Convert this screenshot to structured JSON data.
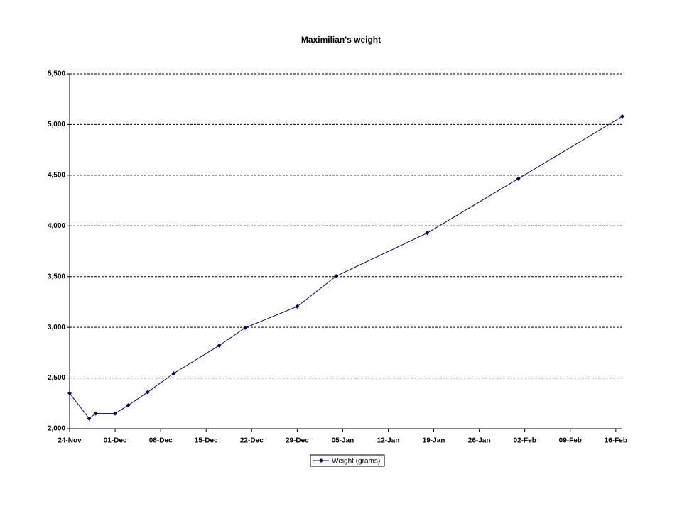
{
  "chart_data": {
    "type": "line",
    "title": "Maximilian's weight",
    "x": [
      "24-Nov",
      "27-Nov",
      "28-Nov",
      "01-Dec",
      "03-Dec",
      "06-Dec",
      "10-Dec",
      "17-Dec",
      "21-Dec",
      "29-Dec",
      "04-Jan",
      "18-Jan",
      "01-Feb",
      "17-Feb"
    ],
    "series": [
      {
        "name": "Weight (grams)",
        "color": "#000066",
        "values": [
          2350,
          2100,
          2150,
          2150,
          2230,
          2360,
          2545,
          2820,
          2995,
          3205,
          3505,
          3930,
          4465,
          5080
        ]
      }
    ],
    "xlim": [
      "24-Nov",
      "17-Feb"
    ],
    "xticks": [
      "24-Nov",
      "01-Dec",
      "08-Dec",
      "15-Dec",
      "22-Dec",
      "29-Dec",
      "05-Jan",
      "12-Jan",
      "19-Jan",
      "26-Jan",
      "02-Feb",
      "09-Feb",
      "16-Feb"
    ],
    "ylim": [
      2000,
      5500
    ],
    "yticks": [
      {
        "value": 2000,
        "label": "2,000"
      },
      {
        "value": 2500,
        "label": "2,500"
      },
      {
        "value": 3000,
        "label": "3,000"
      },
      {
        "value": 3500,
        "label": "3,500"
      },
      {
        "value": 4000,
        "label": "4,000"
      },
      {
        "value": 4500,
        "label": "4,500"
      },
      {
        "value": 5000,
        "label": "5,000"
      },
      {
        "value": 5500,
        "label": "5,500"
      }
    ],
    "grid": true,
    "legend": "bottom"
  }
}
